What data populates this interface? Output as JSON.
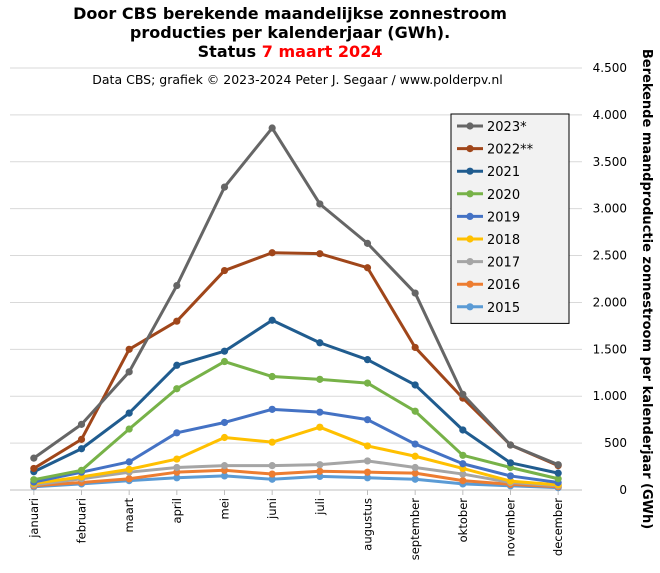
{
  "chart_data": {
    "type": "line",
    "title_line1": "Door CBS berekende maandelijkse  zonnestroom",
    "title_line2": "producties  per kalenderjaar (GWh).",
    "status_prefix": "Status",
    "status_date": "7 maart 2024",
    "source": "Data CBS;  grafiek © 2023-2024  Peter J. Segaar / www.polderpv.nl",
    "ylabel": "Berekende maandproductie  zonnestroom  per kalenderjaar (GWh)",
    "xlabel": "",
    "ylim": [
      0,
      4500
    ],
    "y_ticks": [
      0,
      500,
      1000,
      1500,
      2000,
      2500,
      3000,
      3500,
      4000,
      4500
    ],
    "y_tick_labels": [
      "0",
      "500",
      "1.000",
      "1.500",
      "2.000",
      "2.500",
      "3.000",
      "3.500",
      "4.000",
      "4.500"
    ],
    "grid": true,
    "legend_position": "top-right",
    "categories": [
      "januari",
      "februari",
      "maart",
      "april",
      "mei",
      "juni",
      "juli",
      "augustus",
      "september",
      "oktober",
      "november",
      "december"
    ],
    "series": [
      {
        "name": "2023*",
        "color": "#666666",
        "values": [
          340,
          700,
          1260,
          2180,
          3230,
          3860,
          3050,
          2630,
          2100,
          1020,
          480,
          270
        ]
      },
      {
        "name": "2022**",
        "color": "#a0461a",
        "values": [
          230,
          540,
          1500,
          1800,
          2340,
          2530,
          2520,
          2370,
          1520,
          980,
          480,
          260
        ]
      },
      {
        "name": "2021",
        "color": "#205c8f",
        "values": [
          195,
          440,
          820,
          1330,
          1480,
          1810,
          1570,
          1390,
          1120,
          640,
          290,
          180
        ]
      },
      {
        "name": "2020",
        "color": "#77b248",
        "values": [
          110,
          210,
          650,
          1080,
          1370,
          1210,
          1180,
          1140,
          840,
          370,
          240,
          120
        ]
      },
      {
        "name": "2019",
        "color": "#4472c4",
        "values": [
          85,
          190,
          300,
          610,
          720,
          860,
          830,
          750,
          490,
          280,
          150,
          80
        ]
      },
      {
        "name": "2018",
        "color": "#ffc000",
        "values": [
          70,
          140,
          220,
          330,
          560,
          510,
          670,
          470,
          360,
          230,
          95,
          55
        ]
      },
      {
        "name": "2017",
        "color": "#a5a5a5",
        "values": [
          55,
          120,
          190,
          240,
          260,
          260,
          270,
          310,
          240,
          170,
          80,
          45
        ]
      },
      {
        "name": "2016",
        "color": "#ed7d31",
        "values": [
          45,
          80,
          120,
          190,
          210,
          170,
          200,
          190,
          180,
          100,
          60,
          35
        ]
      },
      {
        "name": "2015",
        "color": "#5b9bd5",
        "values": [
          35,
          65,
          100,
          130,
          150,
          115,
          145,
          130,
          115,
          65,
          45,
          25
        ]
      }
    ]
  }
}
